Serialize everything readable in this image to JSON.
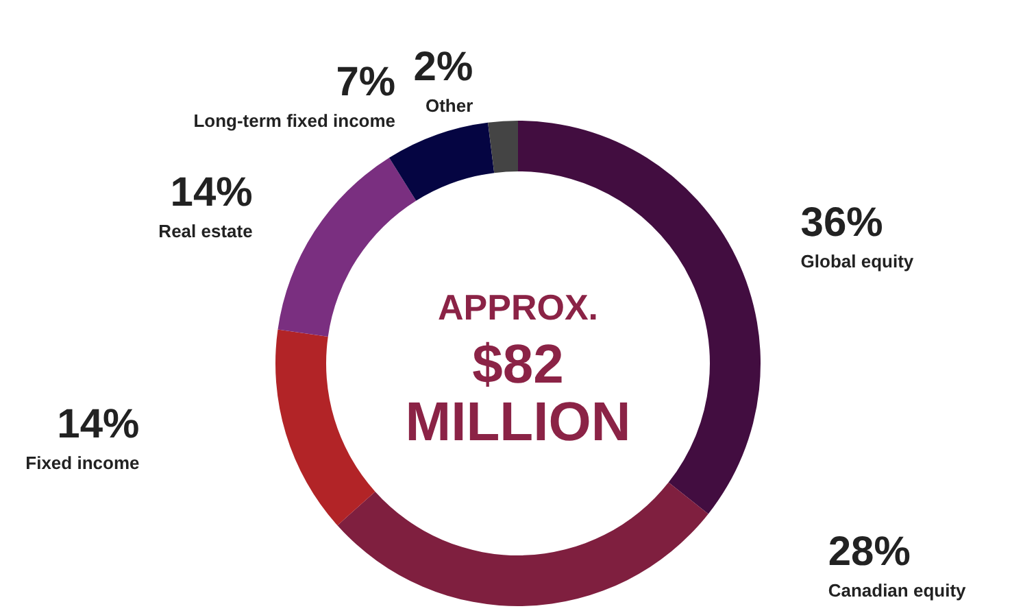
{
  "chart_data": {
    "type": "donut",
    "categories": [
      "Global equity",
      "Canadian equity",
      "Fixed income",
      "Real estate",
      "Long-term fixed income",
      "Other"
    ],
    "values": [
      36,
      28,
      14,
      14,
      7,
      2
    ],
    "value_labels": [
      "36%",
      "28%",
      "14%",
      "14%",
      "7%",
      "2%"
    ],
    "colors": [
      "#420d40",
      "#7f1f3f",
      "#b22427",
      "#7a2f80",
      "#050542",
      "#444444"
    ],
    "annotations": [
      "APPROX.",
      "$82",
      "MILLION"
    ]
  }
}
